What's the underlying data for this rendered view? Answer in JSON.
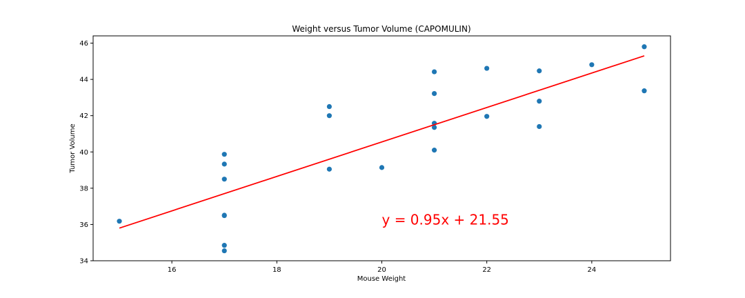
{
  "chart_data": {
    "type": "scatter",
    "title": "Weight versus Tumor Volume (CAPOMULIN)",
    "xlabel": "Mouse Weight",
    "ylabel": "Tumor Volume",
    "xlim": [
      14.5,
      25.5
    ],
    "ylim": [
      34,
      46.4
    ],
    "xticks": [
      16,
      18,
      20,
      22,
      24
    ],
    "yticks": [
      34,
      36,
      38,
      40,
      42,
      44,
      46
    ],
    "grid": false,
    "series": [
      {
        "color": "#1f77b4",
        "points": [
          [
            15,
            36.18
          ],
          [
            17,
            34.55
          ],
          [
            17,
            34.85
          ],
          [
            17,
            36.49
          ],
          [
            17,
            36.51
          ],
          [
            17,
            38.5
          ],
          [
            17,
            39.33
          ],
          [
            17,
            39.87
          ],
          [
            19,
            39.05
          ],
          [
            19,
            42.0
          ],
          [
            19,
            42.5
          ],
          [
            20,
            39.14
          ],
          [
            21,
            40.1
          ],
          [
            21,
            41.35
          ],
          [
            21,
            41.58
          ],
          [
            21,
            43.22
          ],
          [
            21,
            44.42
          ],
          [
            22,
            41.96
          ],
          [
            22,
            44.61
          ],
          [
            23,
            41.4
          ],
          [
            23,
            42.8
          ],
          [
            23,
            44.47
          ],
          [
            24,
            44.81
          ],
          [
            25,
            43.37
          ],
          [
            25,
            45.8
          ]
        ]
      }
    ],
    "regression": {
      "slope": 0.95,
      "intercept": 21.55,
      "x_range": [
        15,
        25
      ],
      "color": "#ff0000"
    },
    "annotation": {
      "text": "y = 0.95x + 21.55",
      "x": 20,
      "y": 36,
      "color": "#ff0000"
    }
  }
}
